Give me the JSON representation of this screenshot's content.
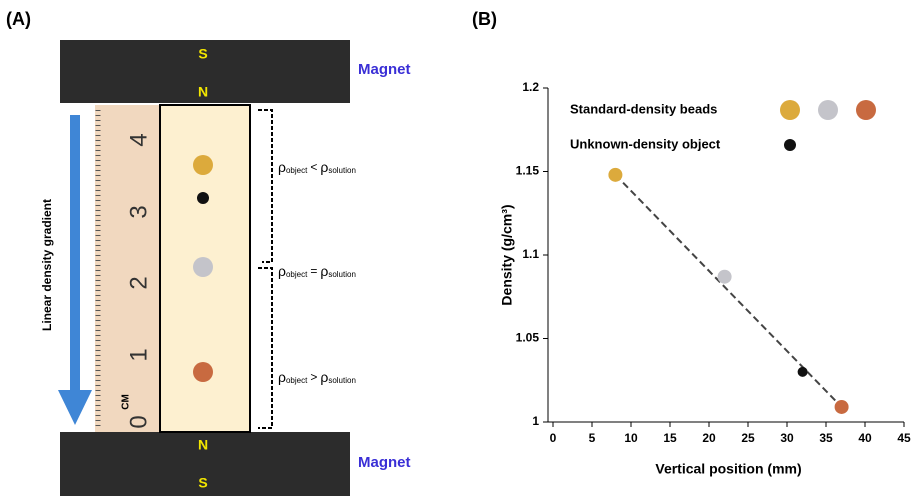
{
  "diagram": {
    "panel_label": "(A)",
    "top_magnet": {
      "pole_top": "S",
      "pole_bottom": "N",
      "label": "Magnet"
    },
    "bottom_magnet": {
      "pole_top": "N",
      "pole_bottom": "S",
      "label": "Magnet"
    },
    "gradient_label": "Linear density gradient",
    "ruler": {
      "labels": [
        "4",
        "3",
        "2",
        "1",
        "0"
      ],
      "unit": "CM"
    },
    "annotations": [
      {
        "symbol": "ρ",
        "sub1": "object",
        "op": "<",
        "symbol2": "ρ",
        "sub2": "solution"
      },
      {
        "symbol": "ρ",
        "sub1": "object",
        "op": "=",
        "symbol2": "ρ",
        "sub2": "solution"
      },
      {
        "symbol": "ρ",
        "sub1": "object",
        "op": ">",
        "symbol2": "ρ",
        "sub2": "solution"
      }
    ]
  },
  "chart_data": {
    "type": "scatter",
    "title": "(B)",
    "xlabel": "Vertical position (mm)",
    "ylabel": "Density (g/cm³)",
    "xlim": [
      0,
      45
    ],
    "xticks": [
      0,
      5,
      10,
      15,
      20,
      25,
      30,
      35,
      40,
      45
    ],
    "ylim": [
      1,
      1.2
    ],
    "yticks": [
      1,
      1.05,
      1.1,
      1.15,
      1.2
    ],
    "trendline": true,
    "series": [
      {
        "name": "Standard-density beads",
        "colors": [
          "#dcaa3c",
          "#c4c4ca",
          "#c86a40"
        ],
        "x": [
          8,
          22,
          37
        ],
        "values": [
          1.148,
          1.087,
          1.009
        ]
      },
      {
        "name": "Unknown-density object",
        "color": "#111111",
        "x": [
          32
        ],
        "values": [
          1.03
        ]
      }
    ]
  }
}
